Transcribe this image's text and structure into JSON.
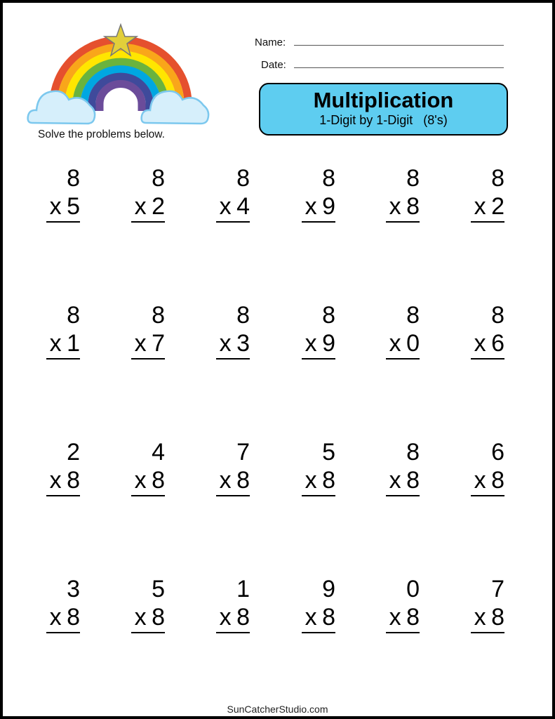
{
  "header": {
    "instruction": "Solve the problems below.",
    "name_label": "Name:",
    "date_label": "Date:",
    "title": "Multiplication",
    "subtitle": "1-Digit by 1-Digit   (8's)"
  },
  "colors": {
    "title_box": "#5ecdf0",
    "rainbow": [
      "#e5502e",
      "#f9a61a",
      "#ffe600",
      "#6ab33e",
      "#00a7e1",
      "#3f4a9b",
      "#6b4c9a"
    ],
    "cloud": "#bfe6f8",
    "star": "#e2cf3a"
  },
  "problems": [
    [
      {
        "top": "8",
        "bottom": "x 5"
      },
      {
        "top": "8",
        "bottom": "x 2"
      },
      {
        "top": "8",
        "bottom": "x 4"
      },
      {
        "top": "8",
        "bottom": "x 9"
      },
      {
        "top": "8",
        "bottom": "x 8"
      },
      {
        "top": "8",
        "bottom": "x 2"
      }
    ],
    [
      {
        "top": "8",
        "bottom": "x 1"
      },
      {
        "top": "8",
        "bottom": "x 7"
      },
      {
        "top": "8",
        "bottom": "x 3"
      },
      {
        "top": "8",
        "bottom": "x 9"
      },
      {
        "top": "8",
        "bottom": "x 0"
      },
      {
        "top": "8",
        "bottom": "x 6"
      }
    ],
    [
      {
        "top": "2",
        "bottom": "x 8"
      },
      {
        "top": "4",
        "bottom": "x 8"
      },
      {
        "top": "7",
        "bottom": "x 8"
      },
      {
        "top": "5",
        "bottom": "x 8"
      },
      {
        "top": "8",
        "bottom": "x 8"
      },
      {
        "top": "6",
        "bottom": "x 8"
      }
    ],
    [
      {
        "top": "3",
        "bottom": "x 8"
      },
      {
        "top": "5",
        "bottom": "x 8"
      },
      {
        "top": "1",
        "bottom": "x 8"
      },
      {
        "top": "9",
        "bottom": "x 8"
      },
      {
        "top": "0",
        "bottom": "x 8"
      },
      {
        "top": "7",
        "bottom": "x 8"
      }
    ]
  ],
  "footer": "SunCatcherStudio.com"
}
